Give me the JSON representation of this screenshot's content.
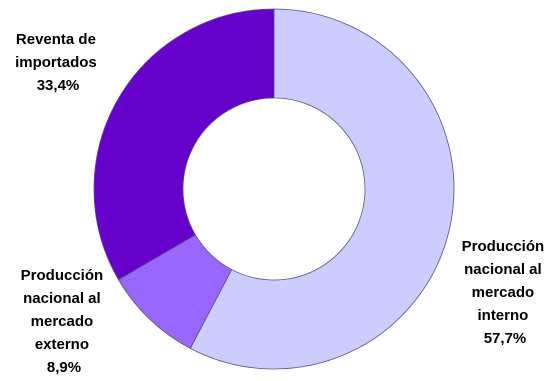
{
  "chart_data": {
    "type": "pie",
    "variant": "donut",
    "slices": [
      {
        "label_lines": [
          "Producción",
          "nacional al",
          "mercado",
          "interno"
        ],
        "value_label": "57,7%",
        "value": 57.7,
        "color": "#ccccff"
      },
      {
        "label_lines": [
          "Producción",
          "nacional al",
          "mercado",
          "externo"
        ],
        "value_label": "8,9%",
        "value": 8.9,
        "color": "#9966ff"
      },
      {
        "label_lines": [
          "Reventa de",
          "importados"
        ],
        "value_label": "33,4%",
        "value": 33.4,
        "color": "#6600cc"
      }
    ],
    "start_angle": "top",
    "direction": "clockwise",
    "slice_border_color": "#555577"
  }
}
